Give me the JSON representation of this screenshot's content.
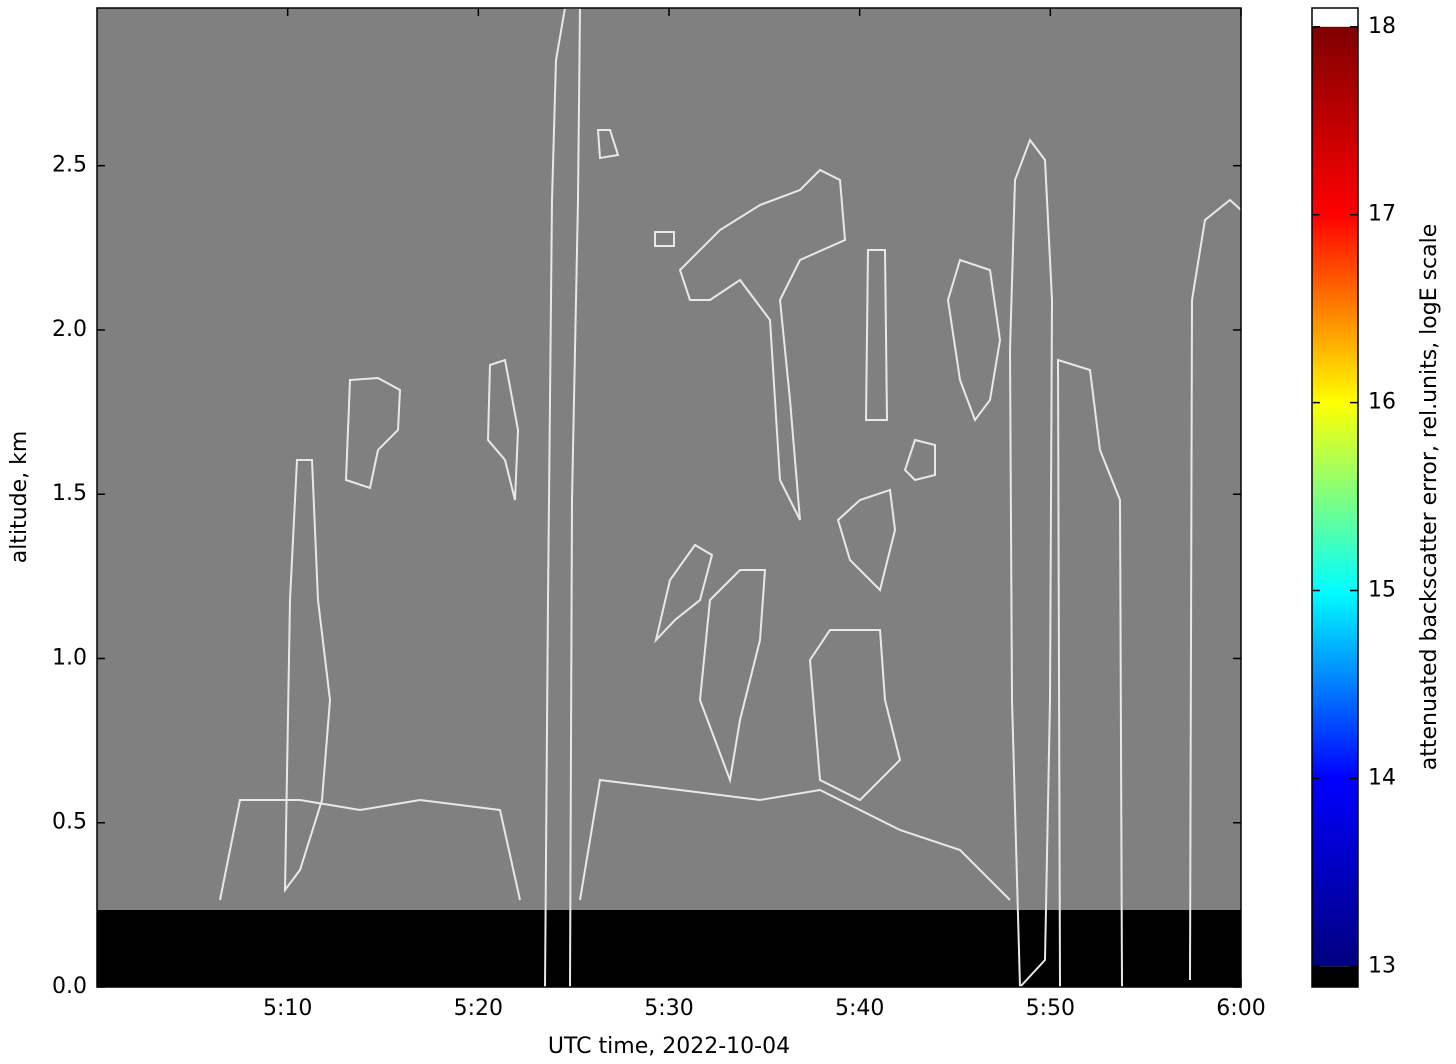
{
  "chart_data": {
    "type": "heatmap",
    "xlabel": "UTC time,  2022-10-04",
    "ylabel": "altitude, km",
    "xlim": [
      300,
      360
    ],
    "xticks": [
      {
        "value": 310,
        "label": "5:10"
      },
      {
        "value": 320,
        "label": "5:20"
      },
      {
        "value": 330,
        "label": "5:30"
      },
      {
        "value": 340,
        "label": "5:40"
      },
      {
        "value": 350,
        "label": "5:50"
      },
      {
        "value": 360,
        "label": "6:00"
      }
    ],
    "ylim": [
      0,
      2.98
    ],
    "yticks": [
      {
        "value": 0,
        "label": "0.0"
      },
      0.5,
      {
        "value": 1,
        "label": "1.0"
      },
      1.5,
      {
        "value": 2,
        "label": "2.0"
      },
      2.5
    ],
    "background_color": "#808080",
    "colorbar": {
      "label": "attenuated backscatter error, rel.units, logE scale",
      "lim": [
        12.89,
        18.1
      ],
      "clim": [
        13,
        18
      ],
      "ticks": [
        13,
        14,
        15,
        16,
        17,
        18
      ],
      "colormap": [
        "#00007f",
        "#0000ff",
        "#00ffff",
        "#ffff00",
        "#ff0000",
        "#7f0000"
      ],
      "under_color": "#000000",
      "over_color": "#ffffff"
    }
  }
}
